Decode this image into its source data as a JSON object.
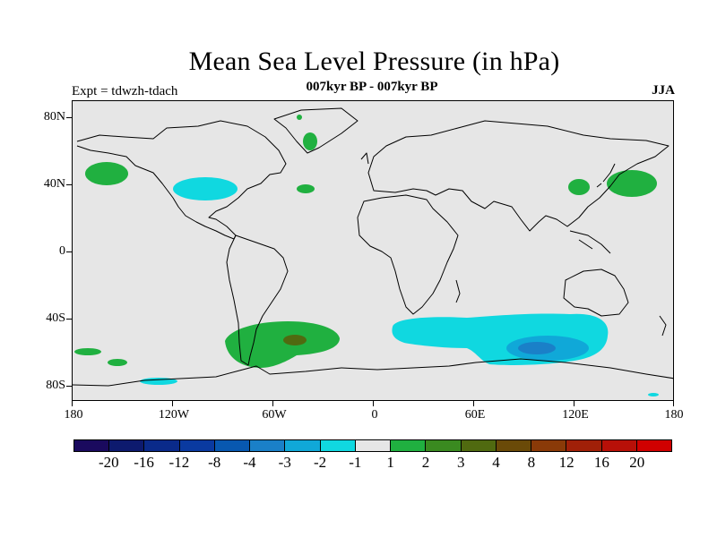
{
  "title": "Mean Sea Level Pressure (in hPa)",
  "subtitle": "007kyr BP - 007kyr BP",
  "left_label": "Expt = tdwzh-tdach",
  "right_label": "JJA",
  "lat_labels": [
    "80N",
    "40N",
    "0",
    "40S",
    "80S"
  ],
  "lon_labels": [
    "180",
    "120W",
    "60W",
    "0",
    "60E",
    "120E",
    "180"
  ],
  "colorbar": {
    "labels": [
      "-20",
      "-16",
      "-12",
      "-8",
      "-4",
      "-3",
      "-2",
      "-1",
      "1",
      "2",
      "3",
      "4",
      "8",
      "12",
      "16",
      "20"
    ],
    "colors": [
      "#1a0a5e",
      "#0d1a6e",
      "#0a2a8a",
      "#0a3aa0",
      "#0858b0",
      "#1a80c8",
      "#10a8d8",
      "#10d8e0",
      "#e6e6e6",
      "#20b040",
      "#3a8a20",
      "#506a10",
      "#6a4a08",
      "#8a3a08",
      "#a02008",
      "#b81008",
      "#d00000"
    ]
  },
  "colors": {
    "land_ocean": "#e6e6e6",
    "cyan": "#10d8e0",
    "mid_blue": "#10a8d8",
    "deep_blue": "#1a80c8",
    "green": "#20b040",
    "dark_green": "#506a10"
  }
}
